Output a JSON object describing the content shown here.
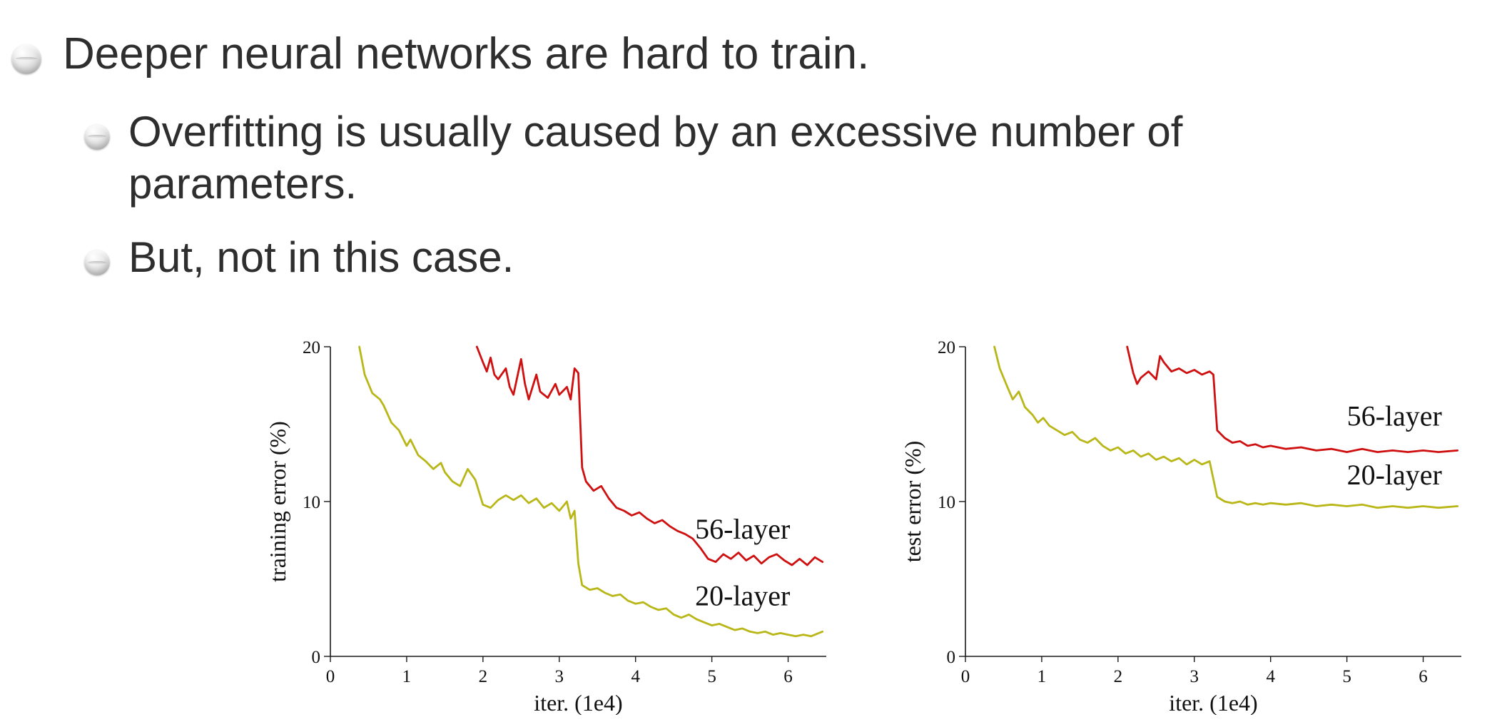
{
  "slide": {
    "bullets": [
      {
        "level": 1,
        "lines": [
          "Deeper neural networks are hard to train."
        ]
      },
      {
        "level": 2,
        "lines": [
          "Overfitting is usually caused by an excessive number of",
          "parameters."
        ]
      },
      {
        "level": 2,
        "lines": [
          "But, not in this case."
        ]
      }
    ]
  },
  "colors": {
    "background": "#ffffff",
    "text": "#2e2e2e",
    "series_56_layer": "#cf1010",
    "series_20_layer": "#b9b718"
  },
  "chart_data": [
    {
      "type": "line",
      "title": "",
      "xlabel": "iter. (1e4)",
      "ylabel": "training error (%)",
      "xlim": [
        0,
        6.5
      ],
      "ylim": [
        0,
        20
      ],
      "xticks": [
        0,
        1,
        2,
        3,
        4,
        5,
        6
      ],
      "yticks": [
        0,
        10,
        20
      ],
      "grid": false,
      "legend_position": "inline-labels",
      "series": [
        {
          "name": "20-layer",
          "color": "#b9b718",
          "label_at": [
            4.78,
            3.3
          ],
          "points": [
            [
              0.38,
              20
            ],
            [
              0.45,
              18.2
            ],
            [
              0.55,
              17.0
            ],
            [
              0.65,
              16.6
            ],
            [
              0.7,
              16.2
            ],
            [
              0.8,
              15.1
            ],
            [
              0.9,
              14.6
            ],
            [
              1.0,
              13.6
            ],
            [
              1.05,
              14.0
            ],
            [
              1.15,
              13.0
            ],
            [
              1.25,
              12.6
            ],
            [
              1.35,
              12.1
            ],
            [
              1.45,
              12.5
            ],
            [
              1.5,
              11.9
            ],
            [
              1.6,
              11.3
            ],
            [
              1.7,
              11.0
            ],
            [
              1.8,
              12.1
            ],
            [
              1.9,
              11.4
            ],
            [
              2.0,
              9.8
            ],
            [
              2.1,
              9.6
            ],
            [
              2.2,
              10.1
            ],
            [
              2.3,
              10.4
            ],
            [
              2.4,
              10.1
            ],
            [
              2.5,
              10.4
            ],
            [
              2.6,
              9.9
            ],
            [
              2.7,
              10.2
            ],
            [
              2.8,
              9.6
            ],
            [
              2.9,
              9.9
            ],
            [
              3.0,
              9.4
            ],
            [
              3.1,
              10.0
            ],
            [
              3.15,
              8.9
            ],
            [
              3.2,
              9.4
            ],
            [
              3.25,
              6.0
            ],
            [
              3.3,
              4.6
            ],
            [
              3.4,
              4.3
            ],
            [
              3.5,
              4.4
            ],
            [
              3.6,
              4.1
            ],
            [
              3.7,
              3.9
            ],
            [
              3.8,
              4.0
            ],
            [
              3.9,
              3.6
            ],
            [
              4.0,
              3.4
            ],
            [
              4.1,
              3.5
            ],
            [
              4.2,
              3.2
            ],
            [
              4.3,
              3.0
            ],
            [
              4.4,
              3.1
            ],
            [
              4.5,
              2.7
            ],
            [
              4.6,
              2.5
            ],
            [
              4.7,
              2.7
            ],
            [
              4.8,
              2.4
            ],
            [
              4.9,
              2.2
            ],
            [
              5.0,
              2.0
            ],
            [
              5.1,
              2.1
            ],
            [
              5.2,
              1.9
            ],
            [
              5.3,
              1.7
            ],
            [
              5.4,
              1.8
            ],
            [
              5.5,
              1.6
            ],
            [
              5.6,
              1.5
            ],
            [
              5.7,
              1.6
            ],
            [
              5.8,
              1.4
            ],
            [
              5.9,
              1.5
            ],
            [
              6.0,
              1.4
            ],
            [
              6.1,
              1.3
            ],
            [
              6.2,
              1.4
            ],
            [
              6.3,
              1.3
            ],
            [
              6.45,
              1.6
            ]
          ]
        },
        {
          "name": "56-layer",
          "color": "#cf1010",
          "label_at": [
            4.78,
            7.6
          ],
          "points": [
            [
              1.92,
              20
            ],
            [
              2.0,
              19.0
            ],
            [
              2.05,
              18.4
            ],
            [
              2.1,
              19.3
            ],
            [
              2.15,
              18.2
            ],
            [
              2.2,
              17.9
            ],
            [
              2.3,
              18.6
            ],
            [
              2.35,
              17.4
            ],
            [
              2.4,
              16.9
            ],
            [
              2.5,
              19.2
            ],
            [
              2.55,
              17.6
            ],
            [
              2.6,
              16.6
            ],
            [
              2.7,
              18.2
            ],
            [
              2.75,
              17.1
            ],
            [
              2.85,
              16.7
            ],
            [
              2.95,
              17.6
            ],
            [
              3.0,
              16.9
            ],
            [
              3.1,
              17.4
            ],
            [
              3.15,
              16.6
            ],
            [
              3.2,
              18.6
            ],
            [
              3.25,
              18.3
            ],
            [
              3.3,
              12.2
            ],
            [
              3.35,
              11.3
            ],
            [
              3.45,
              10.7
            ],
            [
              3.55,
              11.0
            ],
            [
              3.65,
              10.2
            ],
            [
              3.75,
              9.6
            ],
            [
              3.85,
              9.4
            ],
            [
              3.95,
              9.1
            ],
            [
              4.05,
              9.3
            ],
            [
              4.15,
              8.9
            ],
            [
              4.25,
              8.6
            ],
            [
              4.35,
              8.8
            ],
            [
              4.45,
              8.4
            ],
            [
              4.55,
              8.1
            ],
            [
              4.65,
              7.9
            ],
            [
              4.75,
              7.6
            ],
            [
              4.85,
              7.0
            ],
            [
              4.95,
              6.3
            ],
            [
              5.05,
              6.1
            ],
            [
              5.15,
              6.6
            ],
            [
              5.25,
              6.3
            ],
            [
              5.35,
              6.7
            ],
            [
              5.45,
              6.2
            ],
            [
              5.55,
              6.5
            ],
            [
              5.65,
              6.0
            ],
            [
              5.75,
              6.4
            ],
            [
              5.85,
              6.6
            ],
            [
              5.95,
              6.2
            ],
            [
              6.05,
              5.9
            ],
            [
              6.15,
              6.3
            ],
            [
              6.25,
              5.9
            ],
            [
              6.35,
              6.4
            ],
            [
              6.45,
              6.1
            ]
          ]
        }
      ]
    },
    {
      "type": "line",
      "title": "",
      "xlabel": "iter. (1e4)",
      "ylabel": "test error (%)",
      "xlim": [
        0,
        6.5
      ],
      "ylim": [
        0,
        20
      ],
      "xticks": [
        0,
        1,
        2,
        3,
        4,
        5,
        6
      ],
      "yticks": [
        0,
        10,
        20
      ],
      "grid": false,
      "legend_position": "inline-labels",
      "series": [
        {
          "name": "20-layer",
          "color": "#b9b718",
          "label_at": [
            5.0,
            11.1
          ],
          "points": [
            [
              0.38,
              20
            ],
            [
              0.45,
              18.6
            ],
            [
              0.55,
              17.4
            ],
            [
              0.62,
              16.6
            ],
            [
              0.7,
              17.1
            ],
            [
              0.78,
              16.1
            ],
            [
              0.88,
              15.6
            ],
            [
              0.95,
              15.1
            ],
            [
              1.02,
              15.4
            ],
            [
              1.1,
              14.9
            ],
            [
              1.2,
              14.6
            ],
            [
              1.3,
              14.3
            ],
            [
              1.4,
              14.5
            ],
            [
              1.5,
              14.0
            ],
            [
              1.6,
              13.8
            ],
            [
              1.7,
              14.1
            ],
            [
              1.8,
              13.6
            ],
            [
              1.9,
              13.3
            ],
            [
              2.0,
              13.5
            ],
            [
              2.1,
              13.1
            ],
            [
              2.2,
              13.3
            ],
            [
              2.3,
              12.9
            ],
            [
              2.4,
              13.1
            ],
            [
              2.5,
              12.7
            ],
            [
              2.6,
              12.9
            ],
            [
              2.7,
              12.6
            ],
            [
              2.8,
              12.8
            ],
            [
              2.9,
              12.4
            ],
            [
              3.0,
              12.7
            ],
            [
              3.1,
              12.4
            ],
            [
              3.2,
              12.6
            ],
            [
              3.3,
              10.3
            ],
            [
              3.4,
              10.0
            ],
            [
              3.5,
              9.9
            ],
            [
              3.6,
              10.0
            ],
            [
              3.7,
              9.8
            ],
            [
              3.8,
              9.9
            ],
            [
              3.9,
              9.8
            ],
            [
              4.0,
              9.9
            ],
            [
              4.2,
              9.8
            ],
            [
              4.4,
              9.9
            ],
            [
              4.6,
              9.7
            ],
            [
              4.8,
              9.8
            ],
            [
              5.0,
              9.7
            ],
            [
              5.2,
              9.8
            ],
            [
              5.4,
              9.6
            ],
            [
              5.6,
              9.7
            ],
            [
              5.8,
              9.6
            ],
            [
              6.0,
              9.7
            ],
            [
              6.2,
              9.6
            ],
            [
              6.45,
              9.7
            ]
          ]
        },
        {
          "name": "56-layer",
          "color": "#cf1010",
          "label_at": [
            5.0,
            14.9
          ],
          "points": [
            [
              2.12,
              20
            ],
            [
              2.2,
              18.3
            ],
            [
              2.25,
              17.6
            ],
            [
              2.3,
              18.0
            ],
            [
              2.4,
              18.4
            ],
            [
              2.5,
              17.9
            ],
            [
              2.55,
              19.4
            ],
            [
              2.6,
              19.0
            ],
            [
              2.7,
              18.4
            ],
            [
              2.8,
              18.6
            ],
            [
              2.9,
              18.3
            ],
            [
              3.0,
              18.5
            ],
            [
              3.1,
              18.2
            ],
            [
              3.2,
              18.4
            ],
            [
              3.25,
              18.2
            ],
            [
              3.3,
              14.6
            ],
            [
              3.4,
              14.1
            ],
            [
              3.5,
              13.8
            ],
            [
              3.6,
              13.9
            ],
            [
              3.7,
              13.6
            ],
            [
              3.8,
              13.7
            ],
            [
              3.9,
              13.5
            ],
            [
              4.0,
              13.6
            ],
            [
              4.2,
              13.4
            ],
            [
              4.4,
              13.5
            ],
            [
              4.6,
              13.3
            ],
            [
              4.8,
              13.4
            ],
            [
              5.0,
              13.2
            ],
            [
              5.2,
              13.4
            ],
            [
              5.4,
              13.2
            ],
            [
              5.6,
              13.3
            ],
            [
              5.8,
              13.2
            ],
            [
              6.0,
              13.3
            ],
            [
              6.2,
              13.2
            ],
            [
              6.45,
              13.3
            ]
          ]
        }
      ]
    }
  ]
}
